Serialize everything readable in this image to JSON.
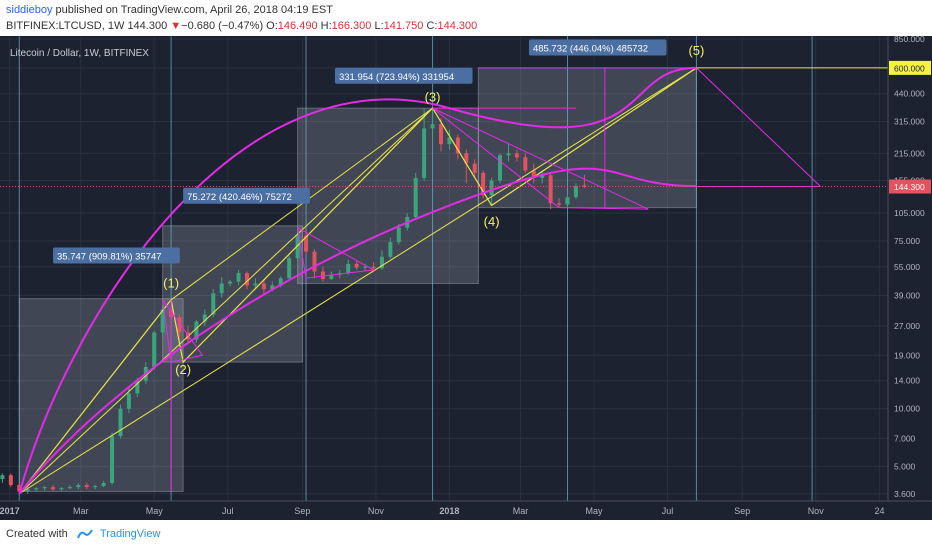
{
  "header": {
    "author": "siddieboy",
    "published_text": " published on TradingView.com, April 26, 2018 04:19 EST",
    "symbol_line": "BITFINEX:LTCUSD, 1W",
    "last": "144.300",
    "change_arrow": "▼",
    "change": "−0.680 (−0.47%)",
    "o_label": "O:",
    "o_value": "146.490",
    "h_label": "H:",
    "h_value": "166.300",
    "l_label": "L:",
    "l_value": "141.750",
    "c_label": "C:",
    "c_value": "144.300"
  },
  "footer": {
    "created_with": "Created with",
    "brand": "TradingView"
  },
  "colors": {
    "background": "#1d2230",
    "up": "#3aa57d",
    "down": "#e2525f",
    "magenta": "#e22be6",
    "yellow": "#e8e645",
    "box": "#c6cad6",
    "wave_label": "#f5f06b",
    "info_box": "#4b6fa3",
    "price_tag_yellow": "#f5f241",
    "price_tag_red": "#e2525f",
    "vline": "#68b7c9"
  },
  "chart_data": {
    "type": "candlestick",
    "title": "Litecoin / Dollar, 1W, BITFINEX",
    "y_scale": "log",
    "ylim": [
      3.3,
      880
    ],
    "y_ticks": [
      "850.000",
      "600.000",
      "440.000",
      "315.000",
      "215.000",
      "155.000",
      "105.000",
      "75.000",
      "55.000",
      "39.000",
      "27.000",
      "19.000",
      "14.000",
      "10.000",
      "7.000",
      "5.000",
      "3.600"
    ],
    "x_ticks": [
      "2017",
      "Mar",
      "May",
      "Jul",
      "Sep",
      "Nov",
      "2018",
      "Mar",
      "May",
      "Jul",
      "Sep",
      "Nov",
      "24"
    ],
    "x_tick_dates": [
      "2017-01-01",
      "2017-03-01",
      "2017-05-01",
      "2017-07-01",
      "2017-09-01",
      "2017-11-01",
      "2018-01-01",
      "2018-03-01",
      "2018-05-01",
      "2018-07-01",
      "2018-09-01",
      "2018-11-01",
      "2018-12-24"
    ],
    "x_range": [
      "2016-12-24",
      "2018-12-31"
    ],
    "price_tags": [
      {
        "label": "600.000",
        "value": 600,
        "color": "yellow"
      },
      {
        "label": "144.300",
        "value": 144.3,
        "color": "red"
      }
    ],
    "candles": [
      {
        "date": "2016-12-26",
        "o": 4.3,
        "h": 4.6,
        "l": 4.1,
        "c": 4.5
      },
      {
        "date": "2017-01-02",
        "o": 4.5,
        "h": 4.6,
        "l": 3.9,
        "c": 4.0
      },
      {
        "date": "2017-01-09",
        "o": 4.0,
        "h": 4.1,
        "l": 3.6,
        "c": 3.7
      },
      {
        "date": "2017-01-16",
        "o": 3.7,
        "h": 3.9,
        "l": 3.6,
        "c": 3.8
      },
      {
        "date": "2017-01-23",
        "o": 3.8,
        "h": 3.9,
        "l": 3.7,
        "c": 3.85
      },
      {
        "date": "2017-01-30",
        "o": 3.85,
        "h": 3.95,
        "l": 3.75,
        "c": 3.9
      },
      {
        "date": "2017-02-06",
        "o": 3.9,
        "h": 4.0,
        "l": 3.7,
        "c": 3.8
      },
      {
        "date": "2017-02-13",
        "o": 3.8,
        "h": 3.9,
        "l": 3.7,
        "c": 3.85
      },
      {
        "date": "2017-02-20",
        "o": 3.85,
        "h": 4.0,
        "l": 3.8,
        "c": 3.9
      },
      {
        "date": "2017-02-27",
        "o": 3.9,
        "h": 4.1,
        "l": 3.8,
        "c": 4.0
      },
      {
        "date": "2017-03-06",
        "o": 4.0,
        "h": 4.1,
        "l": 3.8,
        "c": 3.9
      },
      {
        "date": "2017-03-13",
        "o": 3.9,
        "h": 4.0,
        "l": 3.8,
        "c": 3.95
      },
      {
        "date": "2017-03-20",
        "o": 3.95,
        "h": 4.2,
        "l": 3.9,
        "c": 4.1
      },
      {
        "date": "2017-03-27",
        "o": 4.1,
        "h": 7.5,
        "l": 4.0,
        "c": 7.2
      },
      {
        "date": "2017-04-03",
        "o": 7.2,
        "h": 10.5,
        "l": 7.0,
        "c": 10.0
      },
      {
        "date": "2017-04-10",
        "o": 10.0,
        "h": 12.8,
        "l": 9.5,
        "c": 12.0
      },
      {
        "date": "2017-04-17",
        "o": 12.0,
        "h": 14.5,
        "l": 11.5,
        "c": 14.0
      },
      {
        "date": "2017-04-24",
        "o": 14.0,
        "h": 17.5,
        "l": 13.5,
        "c": 16.5
      },
      {
        "date": "2017-05-01",
        "o": 16.5,
        "h": 25.5,
        "l": 16.0,
        "c": 25.0
      },
      {
        "date": "2017-05-08",
        "o": 25.0,
        "h": 35.0,
        "l": 24.0,
        "c": 33.0
      },
      {
        "date": "2017-05-15",
        "o": 33.0,
        "h": 37.0,
        "l": 29.0,
        "c": 30.0
      },
      {
        "date": "2017-05-22",
        "o": 30.0,
        "h": 31.0,
        "l": 23.0,
        "c": 25.0
      },
      {
        "date": "2017-05-29",
        "o": 25.0,
        "h": 27.0,
        "l": 22.0,
        "c": 23.0
      },
      {
        "date": "2017-06-05",
        "o": 23.0,
        "h": 29.0,
        "l": 22.0,
        "c": 28.5
      },
      {
        "date": "2017-06-12",
        "o": 28.5,
        "h": 33.0,
        "l": 27.0,
        "c": 31.0
      },
      {
        "date": "2017-06-19",
        "o": 31.0,
        "h": 42.0,
        "l": 30.0,
        "c": 40.0
      },
      {
        "date": "2017-06-26",
        "o": 40.0,
        "h": 48.5,
        "l": 38.0,
        "c": 45.0
      },
      {
        "date": "2017-07-03",
        "o": 45.0,
        "h": 47.0,
        "l": 43.5,
        "c": 46.0
      },
      {
        "date": "2017-07-10",
        "o": 46.0,
        "h": 53.0,
        "l": 44.0,
        "c": 51.0
      },
      {
        "date": "2017-07-17",
        "o": 51.0,
        "h": 52.0,
        "l": 42.0,
        "c": 44.0
      },
      {
        "date": "2017-07-24",
        "o": 44.0,
        "h": 48.0,
        "l": 42.0,
        "c": 45.0
      },
      {
        "date": "2017-07-31",
        "o": 45.0,
        "h": 47.0,
        "l": 40.0,
        "c": 42.0
      },
      {
        "date": "2017-08-07",
        "o": 42.0,
        "h": 46.0,
        "l": 41.0,
        "c": 44.0
      },
      {
        "date": "2017-08-14",
        "o": 44.0,
        "h": 49.0,
        "l": 43.0,
        "c": 48.0
      },
      {
        "date": "2017-08-21",
        "o": 48.0,
        "h": 63.0,
        "l": 47.0,
        "c": 61.0
      },
      {
        "date": "2017-08-28",
        "o": 61.0,
        "h": 88.0,
        "l": 60.0,
        "c": 80.0
      },
      {
        "date": "2017-09-04",
        "o": 80.0,
        "h": 85.0,
        "l": 64.0,
        "c": 66.0
      },
      {
        "date": "2017-09-11",
        "o": 66.0,
        "h": 68.0,
        "l": 48.0,
        "c": 52.0
      },
      {
        "date": "2017-09-18",
        "o": 52.0,
        "h": 55.0,
        "l": 46.0,
        "c": 47.5
      },
      {
        "date": "2017-09-25",
        "o": 47.5,
        "h": 52.0,
        "l": 47.0,
        "c": 50.0
      },
      {
        "date": "2017-10-02",
        "o": 50.0,
        "h": 53.0,
        "l": 48.0,
        "c": 51.0
      },
      {
        "date": "2017-10-09",
        "o": 51.0,
        "h": 60.0,
        "l": 50.0,
        "c": 57.0
      },
      {
        "date": "2017-10-16",
        "o": 57.0,
        "h": 59.0,
        "l": 53.0,
        "c": 54.5
      },
      {
        "date": "2017-10-23",
        "o": 54.5,
        "h": 57.0,
        "l": 52.0,
        "c": 55.0
      },
      {
        "date": "2017-10-30",
        "o": 55.0,
        "h": 58.0,
        "l": 53.5,
        "c": 54.0
      },
      {
        "date": "2017-11-06",
        "o": 54.0,
        "h": 67.0,
        "l": 53.0,
        "c": 62.0
      },
      {
        "date": "2017-11-13",
        "o": 62.0,
        "h": 78.0,
        "l": 61.0,
        "c": 74.0
      },
      {
        "date": "2017-11-20",
        "o": 74.0,
        "h": 92.0,
        "l": 72.0,
        "c": 88.0
      },
      {
        "date": "2017-11-27",
        "o": 88.0,
        "h": 105.0,
        "l": 85.0,
        "c": 100.0
      },
      {
        "date": "2017-12-04",
        "o": 100.0,
        "h": 170.0,
        "l": 98.0,
        "c": 160.0
      },
      {
        "date": "2017-12-11",
        "o": 160.0,
        "h": 370.0,
        "l": 155.0,
        "c": 290.0
      },
      {
        "date": "2017-12-18",
        "o": 290.0,
        "h": 375.0,
        "l": 250.0,
        "c": 305.0
      },
      {
        "date": "2017-12-25",
        "o": 305.0,
        "h": 330.0,
        "l": 220.0,
        "c": 240.0
      },
      {
        "date": "2018-01-01",
        "o": 240.0,
        "h": 285.0,
        "l": 225.0,
        "c": 260.0
      },
      {
        "date": "2018-01-08",
        "o": 260.0,
        "h": 270.0,
        "l": 200.0,
        "c": 215.0
      },
      {
        "date": "2018-01-15",
        "o": 215.0,
        "h": 225.0,
        "l": 150.0,
        "c": 190.0
      },
      {
        "date": "2018-01-22",
        "o": 190.0,
        "h": 200.0,
        "l": 160.0,
        "c": 170.0
      },
      {
        "date": "2018-01-29",
        "o": 170.0,
        "h": 175.0,
        "l": 125.0,
        "c": 130.0
      },
      {
        "date": "2018-02-05",
        "o": 130.0,
        "h": 160.0,
        "l": 115.0,
        "c": 155.0
      },
      {
        "date": "2018-02-12",
        "o": 155.0,
        "h": 215.0,
        "l": 150.0,
        "c": 210.0
      },
      {
        "date": "2018-02-19",
        "o": 210.0,
        "h": 240.0,
        "l": 195.0,
        "c": 215.0
      },
      {
        "date": "2018-02-26",
        "o": 215.0,
        "h": 225.0,
        "l": 195.0,
        "c": 205.0
      },
      {
        "date": "2018-03-05",
        "o": 205.0,
        "h": 215.0,
        "l": 170.0,
        "c": 175.0
      },
      {
        "date": "2018-03-12",
        "o": 175.0,
        "h": 190.0,
        "l": 150.0,
        "c": 160.0
      },
      {
        "date": "2018-03-19",
        "o": 160.0,
        "h": 175.0,
        "l": 150.0,
        "c": 165.0
      },
      {
        "date": "2018-03-26",
        "o": 165.0,
        "h": 170.0,
        "l": 110.0,
        "c": 118.0
      },
      {
        "date": "2018-04-02",
        "o": 118.0,
        "h": 125.0,
        "l": 112.0,
        "c": 116.0
      },
      {
        "date": "2018-04-09",
        "o": 116.0,
        "h": 130.0,
        "l": 113.0,
        "c": 127.0
      },
      {
        "date": "2018-04-16",
        "o": 127.0,
        "h": 150.0,
        "l": 124.0,
        "c": 145.0
      },
      {
        "date": "2018-04-23",
        "o": 146.49,
        "h": 166.3,
        "l": 141.75,
        "c": 144.3
      }
    ],
    "annotations": {
      "measure_labels": [
        {
          "text": "35.747 (909.81%) 35747",
          "date": "2017-02-06",
          "price": 60
        },
        {
          "text": "75.272 (420.46%) 75272",
          "date": "2017-05-25",
          "price": 123
        },
        {
          "text": "331.954 (723.94%) 331954",
          "date": "2017-09-28",
          "price": 520
        },
        {
          "text": "485.732 (446.04%) 485732",
          "date": "2018-03-08",
          "price": 730
        }
      ],
      "wave_labels": [
        {
          "text": "(1)",
          "date": "2017-05-15",
          "price": 43
        },
        {
          "text": "(2)",
          "date": "2017-05-25",
          "price": 15.2
        },
        {
          "text": "(3)",
          "date": "2017-12-18",
          "price": 400
        },
        {
          "text": "(4)",
          "date": "2018-02-05",
          "price": 90
        },
        {
          "text": "(5)",
          "date": "2018-07-25",
          "price": 700
        }
      ],
      "wave_path": [
        {
          "date": "2017-01-09",
          "price": 3.6
        },
        {
          "date": "2017-05-15",
          "price": 37
        },
        {
          "date": "2017-05-25",
          "price": 17.5
        },
        {
          "date": "2017-12-18",
          "price": 370
        },
        {
          "date": "2018-02-05",
          "price": 115
        },
        {
          "date": "2018-07-25",
          "price": 600
        }
      ],
      "measure_boxes": [
        {
          "date1": "2017-01-09",
          "date2": "2017-05-25",
          "p1": 3.7,
          "p2": 37.5
        },
        {
          "date1": "2017-05-08",
          "date2": "2017-09-01",
          "p1": 17.5,
          "p2": 90
        },
        {
          "date1": "2017-08-28",
          "date2": "2018-01-25",
          "p1": 45,
          "p2": 370
        },
        {
          "date1": "2018-01-25",
          "date2": "2018-07-25",
          "p1": 112,
          "p2": 600
        }
      ],
      "vlines": [
        "2017-01-09",
        "2017-05-15",
        "2017-09-04",
        "2017-12-18",
        "2018-04-09",
        "2018-07-25",
        "2018-10-29"
      ]
    }
  }
}
